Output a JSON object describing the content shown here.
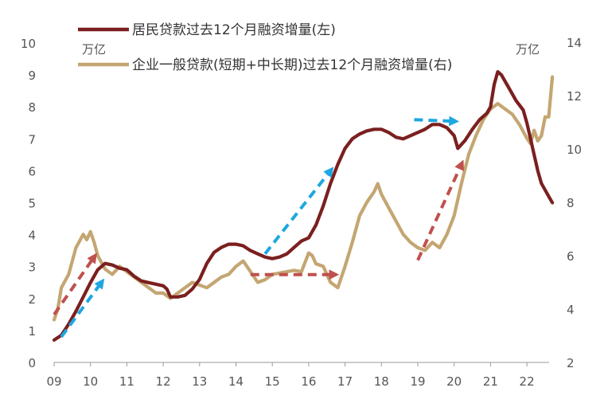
{
  "chart_data": {
    "type": "line",
    "title": "",
    "left_unit": "万亿",
    "right_unit": "万亿",
    "x_ticks": [
      "09",
      "10",
      "11",
      "12",
      "13",
      "14",
      "15",
      "16",
      "17",
      "18",
      "19",
      "20",
      "21",
      "22"
    ],
    "y_left_ticks": [
      "0",
      "1",
      "2",
      "3",
      "4",
      "5",
      "6",
      "7",
      "8",
      "9",
      "10"
    ],
    "y_right_ticks": [
      "2",
      "4",
      "6",
      "8",
      "10",
      "12",
      "14"
    ],
    "ylim_left": [
      0,
      10
    ],
    "ylim_right": [
      2,
      14
    ],
    "grid": false,
    "legend_position": "top",
    "series": [
      {
        "name": "居民贷款过去12个月融资增量(左)",
        "axis": "left",
        "color": "#7b1f1f",
        "points": [
          [
            2009.0,
            0.7
          ],
          [
            2009.2,
            0.85
          ],
          [
            2009.4,
            1.2
          ],
          [
            2009.6,
            1.6
          ],
          [
            2009.8,
            2.05
          ],
          [
            2010.0,
            2.5
          ],
          [
            2010.2,
            2.9
          ],
          [
            2010.4,
            3.1
          ],
          [
            2010.6,
            3.05
          ],
          [
            2010.8,
            2.95
          ],
          [
            2011.0,
            2.9
          ],
          [
            2011.2,
            2.7
          ],
          [
            2011.4,
            2.55
          ],
          [
            2011.6,
            2.5
          ],
          [
            2011.8,
            2.45
          ],
          [
            2012.0,
            2.4
          ],
          [
            2012.1,
            2.3
          ],
          [
            2012.2,
            2.05
          ],
          [
            2012.4,
            2.05
          ],
          [
            2012.6,
            2.1
          ],
          [
            2012.8,
            2.3
          ],
          [
            2013.0,
            2.6
          ],
          [
            2013.2,
            3.1
          ],
          [
            2013.4,
            3.45
          ],
          [
            2013.6,
            3.6
          ],
          [
            2013.8,
            3.7
          ],
          [
            2014.0,
            3.7
          ],
          [
            2014.2,
            3.65
          ],
          [
            2014.4,
            3.5
          ],
          [
            2014.6,
            3.4
          ],
          [
            2014.8,
            3.3
          ],
          [
            2015.0,
            3.25
          ],
          [
            2015.2,
            3.3
          ],
          [
            2015.4,
            3.4
          ],
          [
            2015.6,
            3.6
          ],
          [
            2015.8,
            3.8
          ],
          [
            2016.0,
            3.9
          ],
          [
            2016.2,
            4.3
          ],
          [
            2016.4,
            4.9
          ],
          [
            2016.6,
            5.6
          ],
          [
            2016.8,
            6.2
          ],
          [
            2017.0,
            6.7
          ],
          [
            2017.2,
            7.0
          ],
          [
            2017.4,
            7.15
          ],
          [
            2017.6,
            7.25
          ],
          [
            2017.8,
            7.3
          ],
          [
            2018.0,
            7.3
          ],
          [
            2018.2,
            7.2
          ],
          [
            2018.4,
            7.05
          ],
          [
            2018.6,
            7.0
          ],
          [
            2018.8,
            7.1
          ],
          [
            2019.0,
            7.2
          ],
          [
            2019.2,
            7.3
          ],
          [
            2019.4,
            7.45
          ],
          [
            2019.6,
            7.45
          ],
          [
            2019.8,
            7.35
          ],
          [
            2020.0,
            7.1
          ],
          [
            2020.1,
            6.7
          ],
          [
            2020.3,
            6.95
          ],
          [
            2020.5,
            7.3
          ],
          [
            2020.7,
            7.6
          ],
          [
            2020.9,
            7.8
          ],
          [
            2021.0,
            8.0
          ],
          [
            2021.1,
            8.7
          ],
          [
            2021.2,
            9.1
          ],
          [
            2021.3,
            9.0
          ],
          [
            2021.5,
            8.6
          ],
          [
            2021.7,
            8.2
          ],
          [
            2021.9,
            7.9
          ],
          [
            2022.0,
            7.5
          ],
          [
            2022.1,
            7.0
          ],
          [
            2022.2,
            6.5
          ],
          [
            2022.3,
            6.0
          ],
          [
            2022.4,
            5.6
          ],
          [
            2022.5,
            5.4
          ],
          [
            2022.6,
            5.2
          ],
          [
            2022.7,
            5.0
          ]
        ]
      },
      {
        "name": "企业一般贷款(短期+中长期)过去12个月融资增量(右)",
        "axis": "right",
        "color": "#c4a672",
        "points": [
          [
            2009.0,
            3.6
          ],
          [
            2009.1,
            4.0
          ],
          [
            2009.2,
            4.8
          ],
          [
            2009.4,
            5.3
          ],
          [
            2009.6,
            6.3
          ],
          [
            2009.8,
            6.8
          ],
          [
            2009.9,
            6.6
          ],
          [
            2010.0,
            6.9
          ],
          [
            2010.1,
            6.5
          ],
          [
            2010.2,
            6.0
          ],
          [
            2010.4,
            5.5
          ],
          [
            2010.6,
            5.3
          ],
          [
            2010.8,
            5.6
          ],
          [
            2011.0,
            5.4
          ],
          [
            2011.2,
            5.2
          ],
          [
            2011.4,
            5.0
          ],
          [
            2011.6,
            4.8
          ],
          [
            2011.8,
            4.6
          ],
          [
            2012.0,
            4.6
          ],
          [
            2012.2,
            4.4
          ],
          [
            2012.4,
            4.6
          ],
          [
            2012.6,
            4.8
          ],
          [
            2012.8,
            5.0
          ],
          [
            2013.0,
            4.9
          ],
          [
            2013.2,
            4.8
          ],
          [
            2013.4,
            5.0
          ],
          [
            2013.6,
            5.2
          ],
          [
            2013.8,
            5.3
          ],
          [
            2014.0,
            5.6
          ],
          [
            2014.2,
            5.8
          ],
          [
            2014.4,
            5.4
          ],
          [
            2014.6,
            5.0
          ],
          [
            2014.8,
            5.1
          ],
          [
            2015.0,
            5.3
          ],
          [
            2015.2,
            5.35
          ],
          [
            2015.4,
            5.4
          ],
          [
            2015.6,
            5.45
          ],
          [
            2015.8,
            5.4
          ],
          [
            2016.0,
            6.1
          ],
          [
            2016.1,
            6.0
          ],
          [
            2016.2,
            5.7
          ],
          [
            2016.4,
            5.6
          ],
          [
            2016.6,
            5.0
          ],
          [
            2016.8,
            4.8
          ],
          [
            2017.0,
            5.6
          ],
          [
            2017.2,
            6.5
          ],
          [
            2017.4,
            7.5
          ],
          [
            2017.6,
            8.0
          ],
          [
            2017.8,
            8.4
          ],
          [
            2017.9,
            8.7
          ],
          [
            2018.0,
            8.3
          ],
          [
            2018.2,
            7.8
          ],
          [
            2018.4,
            7.3
          ],
          [
            2018.6,
            6.8
          ],
          [
            2018.8,
            6.5
          ],
          [
            2019.0,
            6.3
          ],
          [
            2019.2,
            6.2
          ],
          [
            2019.4,
            6.5
          ],
          [
            2019.6,
            6.3
          ],
          [
            2019.8,
            6.8
          ],
          [
            2020.0,
            7.5
          ],
          [
            2020.2,
            8.7
          ],
          [
            2020.4,
            9.8
          ],
          [
            2020.6,
            10.5
          ],
          [
            2020.8,
            11.1
          ],
          [
            2021.0,
            11.5
          ],
          [
            2021.2,
            11.7
          ],
          [
            2021.4,
            11.5
          ],
          [
            2021.6,
            11.3
          ],
          [
            2021.8,
            10.9
          ],
          [
            2022.0,
            10.4
          ],
          [
            2022.1,
            10.2
          ],
          [
            2022.2,
            10.7
          ],
          [
            2022.3,
            10.3
          ],
          [
            2022.4,
            10.5
          ],
          [
            2022.5,
            11.2
          ],
          [
            2022.6,
            11.2
          ],
          [
            2022.7,
            12.7
          ]
        ]
      }
    ],
    "annotations": [
      {
        "name": "arrow-blue-2009",
        "color": "#1ea7e1",
        "from": [
          2009.2,
          0.8
        ],
        "to": [
          2010.3,
          2.5
        ],
        "axis": "left"
      },
      {
        "name": "arrow-red-2009",
        "color": "#c0504d",
        "from": [
          2009.0,
          1.5
        ],
        "to": [
          2010.1,
          3.3
        ],
        "axis": "left"
      },
      {
        "name": "arrow-blue-2015",
        "color": "#1ea7e1",
        "from": [
          2014.8,
          3.4
        ],
        "to": [
          2016.6,
          6.0
        ],
        "axis": "left"
      },
      {
        "name": "arrow-red-2014",
        "color": "#c0504d",
        "from": [
          2014.4,
          2.75
        ],
        "to": [
          2016.7,
          2.75
        ],
        "axis": "left"
      },
      {
        "name": "arrow-blue-2019",
        "color": "#1ea7e1",
        "from": [
          2018.9,
          7.6
        ],
        "to": [
          2020.0,
          7.55
        ],
        "axis": "left"
      },
      {
        "name": "arrow-red-2019",
        "color": "#c0504d",
        "from": [
          2019.0,
          3.2
        ],
        "to": [
          2020.2,
          6.2
        ],
        "axis": "left"
      }
    ]
  },
  "legend": [
    {
      "label": "居民贷款过去12个月融资增量(左)",
      "color": "#7b1f1f"
    },
    {
      "label": "企业一般贷款(短期+中长期)过去12个月融资增量(右)",
      "color": "#c4a672"
    }
  ]
}
